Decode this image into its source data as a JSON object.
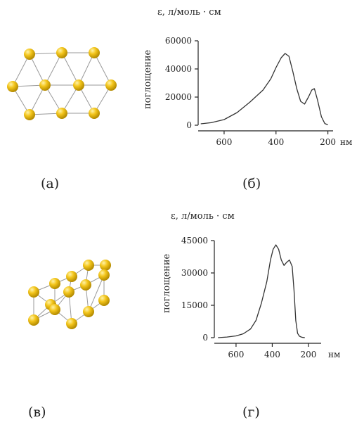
{
  "captions": {
    "a": "(а)",
    "b": "(б)",
    "c": "(в)",
    "d": "(г)"
  },
  "colors": {
    "atom": "#f3c51b",
    "atom_highlight": "#fff3a8",
    "atom_shadow": "#b38a00",
    "bond": "#999999",
    "curve": "#333333"
  },
  "chart_data": [
    {
      "type": "line",
      "unit_label": "ε,  л/моль · см",
      "ylabel": "поглощение",
      "xlabel": "нм",
      "x_ticks": [
        600,
        400,
        200
      ],
      "y_ticks": [
        0,
        20000,
        40000,
        60000
      ],
      "xlim": [
        700,
        180
      ],
      "ylim": [
        0,
        60000
      ],
      "grid": false,
      "series": [
        {
          "x": [
            690,
            650,
            600,
            550,
            500,
            450,
            420,
            400,
            380,
            365,
            350,
            335,
            320,
            305,
            290,
            275,
            262,
            252,
            240,
            225,
            212,
            200
          ],
          "y": [
            1000,
            1800,
            4000,
            9000,
            16500,
            25000,
            33000,
            41000,
            48000,
            51000,
            49000,
            38000,
            26000,
            17000,
            15000,
            20000,
            25000,
            26000,
            18000,
            6000,
            1200,
            300
          ]
        }
      ]
    },
    {
      "type": "line",
      "unit_label": "ε,  л/моль · см",
      "ylabel": "поглощение",
      "xlabel": "нм",
      "x_ticks": [
        600,
        400,
        200
      ],
      "y_ticks": [
        0,
        15000,
        30000,
        45000
      ],
      "xlim": [
        720,
        130
      ],
      "ylim": [
        0,
        45000
      ],
      "grid": false,
      "series": [
        {
          "x": [
            700,
            650,
            600,
            560,
            520,
            490,
            460,
            430,
            410,
            395,
            380,
            365,
            350,
            335,
            320,
            305,
            290,
            280,
            270,
            260,
            250,
            240,
            230,
            220
          ],
          "y": [
            0,
            300,
            800,
            1800,
            4000,
            8000,
            16000,
            26000,
            36000,
            41000,
            43000,
            41000,
            36000,
            33500,
            35000,
            36000,
            33000,
            22000,
            8000,
            2000,
            700,
            300,
            100,
            0
          ]
        }
      ]
    }
  ]
}
